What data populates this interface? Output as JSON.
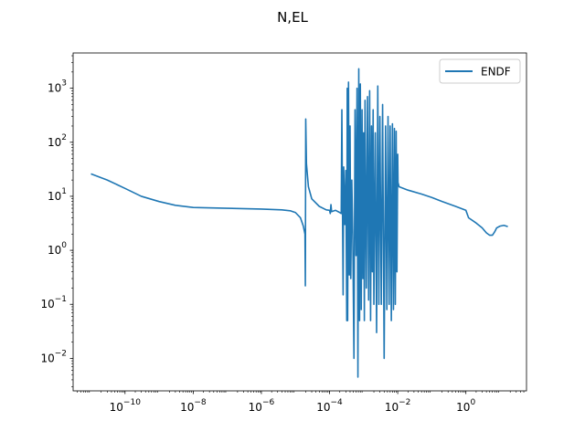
{
  "chart_data": {
    "type": "line",
    "title": "N,EL",
    "xlabel": "",
    "ylabel": "",
    "xscale": "log",
    "yscale": "log",
    "xlim": [
      3e-12,
      60
    ],
    "ylim": [
      0.0025,
      4500
    ],
    "grid": false,
    "legend": {
      "placement": "top-right",
      "entries": [
        "ENDF"
      ]
    },
    "x_ticks": [
      {
        "base": "10",
        "exp": "−10",
        "value": 1e-10
      },
      {
        "base": "10",
        "exp": "−8",
        "value": 1e-08
      },
      {
        "base": "10",
        "exp": "−6",
        "value": 1e-06
      },
      {
        "base": "10",
        "exp": "−4",
        "value": 0.0001
      },
      {
        "base": "10",
        "exp": "−2",
        "value": 0.01
      },
      {
        "base": "10",
        "exp": "0",
        "value": 1
      }
    ],
    "y_ticks": [
      {
        "base": "10",
        "exp": "−2",
        "value": 0.01
      },
      {
        "base": "10",
        "exp": "−1",
        "value": 0.1
      },
      {
        "base": "10",
        "exp": "0",
        "value": 1
      },
      {
        "base": "10",
        "exp": "1",
        "value": 10
      },
      {
        "base": "10",
        "exp": "2",
        "value": 100
      },
      {
        "base": "10",
        "exp": "3",
        "value": 1000
      }
    ],
    "series": [
      {
        "name": "ENDF",
        "color": "#1f77b4",
        "points": [
          [
            1e-11,
            26
          ],
          [
            3e-11,
            20
          ],
          [
            1e-10,
            14
          ],
          [
            3e-10,
            10
          ],
          [
            1e-09,
            8.0
          ],
          [
            3e-09,
            6.8
          ],
          [
            1e-08,
            6.2
          ],
          [
            1e-07,
            6.0
          ],
          [
            1e-06,
            5.8
          ],
          [
            4e-06,
            5.6
          ],
          [
            7e-06,
            5.4
          ],
          [
            1e-05,
            5.0
          ],
          [
            1.4e-05,
            4.0
          ],
          [
            1.7e-05,
            2.8
          ],
          [
            1.9e-05,
            2.0
          ],
          [
            1.95e-05,
            0.22
          ],
          [
            2e-05,
            270
          ],
          [
            2.1e-05,
            40
          ],
          [
            2.4e-05,
            15
          ],
          [
            3e-05,
            9
          ],
          [
            5e-05,
            6.5
          ],
          [
            8e-05,
            5.6
          ],
          [
            0.0001,
            5.5
          ],
          [
            0.000105,
            4.8
          ],
          [
            0.00011,
            7.0
          ],
          [
            0.000115,
            5.2
          ],
          [
            0.00015,
            5.5
          ],
          [
            0.0002,
            5.0
          ],
          [
            0.00022,
            4.8
          ],
          [
            0.00023,
            400
          ],
          [
            0.00024,
            5.5
          ],
          [
            0.00025,
            0.15
          ],
          [
            0.00026,
            35
          ],
          [
            0.00028,
            3.0
          ],
          [
            0.0003,
            30
          ],
          [
            0.00032,
            0.05
          ],
          [
            0.00033,
            1000
          ],
          [
            0.00034,
            0.05
          ],
          [
            0.00036,
            1300
          ],
          [
            0.00038,
            0.35
          ],
          [
            0.0004,
            200
          ],
          [
            0.00042,
            0.3
          ],
          [
            0.00045,
            20
          ],
          [
            0.00048,
            2.0
          ],
          [
            0.00052,
            0.01
          ],
          [
            0.00056,
            400
          ],
          [
            0.0006,
            0.8
          ],
          [
            0.00064,
            1000
          ],
          [
            0.00068,
            0.0045
          ],
          [
            0.00072,
            2300
          ],
          [
            0.00076,
            0.05
          ],
          [
            0.0008,
            1200
          ],
          [
            0.00085,
            0.08
          ],
          [
            0.0009,
            400
          ],
          [
            0.00095,
            0.3
          ],
          [
            0.001,
            150
          ],
          [
            0.00105,
            0.05
          ],
          [
            0.0011,
            600
          ],
          [
            0.0012,
            0.2
          ],
          [
            0.0013,
            700
          ],
          [
            0.0014,
            0.12
          ],
          [
            0.0015,
            900
          ],
          [
            0.0016,
            0.05
          ],
          [
            0.0017,
            200
          ],
          [
            0.0018,
            0.4
          ],
          [
            0.0019,
            400
          ],
          [
            0.002,
            0.1
          ],
          [
            0.0022,
            150
          ],
          [
            0.0024,
            0.03
          ],
          [
            0.0026,
            1100
          ],
          [
            0.0028,
            0.1
          ],
          [
            0.003,
            300
          ],
          [
            0.0033,
            0.1
          ],
          [
            0.0036,
            500
          ],
          [
            0.004,
            0.01
          ],
          [
            0.0044,
            200
          ],
          [
            0.0048,
            0.08
          ],
          [
            0.0052,
            300
          ],
          [
            0.0056,
            0.1
          ],
          [
            0.006,
            200
          ],
          [
            0.0065,
            0.05
          ],
          [
            0.007,
            220
          ],
          [
            0.0075,
            0.08
          ],
          [
            0.008,
            180
          ],
          [
            0.0085,
            0.1
          ],
          [
            0.009,
            160
          ],
          [
            0.0095,
            0.4
          ],
          [
            0.01,
            60
          ],
          [
            0.0102,
            18
          ],
          [
            0.011,
            15
          ],
          [
            0.02,
            13
          ],
          [
            0.05,
            11
          ],
          [
            0.1,
            9.5
          ],
          [
            0.2,
            8.0
          ],
          [
            0.5,
            6.5
          ],
          [
            1.0,
            5.5
          ],
          [
            1.2,
            4.0
          ],
          [
            2.0,
            3.2
          ],
          [
            3.0,
            2.6
          ],
          [
            4.0,
            2.1
          ],
          [
            5.0,
            1.9
          ],
          [
            6.0,
            1.9
          ],
          [
            7.0,
            2.2
          ],
          [
            8.0,
            2.6
          ],
          [
            10.0,
            2.8
          ],
          [
            13.0,
            2.9
          ],
          [
            17.0,
            2.75
          ]
        ]
      }
    ]
  }
}
